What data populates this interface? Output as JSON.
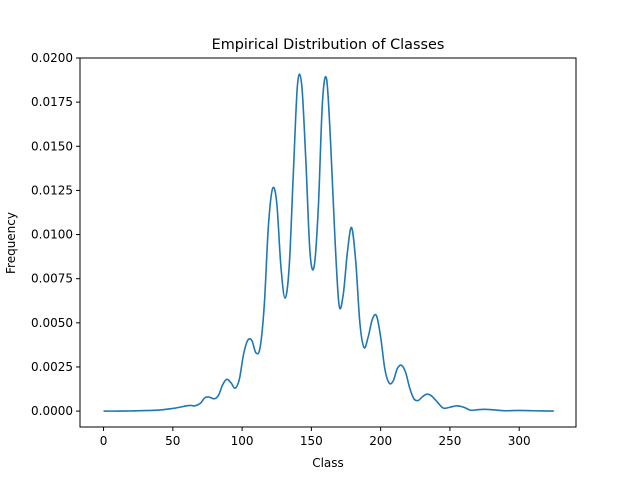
{
  "chart_data": {
    "type": "line",
    "title": "Empirical Distribution of Classes",
    "xlabel": "Class",
    "ylabel": "Frequency",
    "xlim": [
      -17,
      341
    ],
    "ylim": [
      -0.0009,
      0.02
    ],
    "xticks": [
      0,
      50,
      100,
      150,
      200,
      250,
      300
    ],
    "xtick_labels": [
      "0",
      "50",
      "100",
      "150",
      "200",
      "250",
      "300"
    ],
    "yticks": [
      0.0,
      0.0025,
      0.005,
      0.0075,
      0.01,
      0.0125,
      0.015,
      0.0175,
      0.02
    ],
    "ytick_labels": [
      "0.0000",
      "0.0025",
      "0.0050",
      "0.0075",
      "0.0100",
      "0.0125",
      "0.0150",
      "0.0175",
      "0.0200"
    ],
    "grid": false,
    "line_color": "#1f77b4",
    "series": [
      {
        "x": [
          0,
          10,
          20,
          30,
          40,
          45,
          50,
          55,
          60,
          63,
          66,
          70,
          73,
          76,
          80,
          83,
          86,
          89,
          92,
          95,
          98,
          101,
          104,
          107,
          110,
          113,
          116,
          119,
          122,
          125,
          128,
          131,
          134,
          137,
          140,
          143,
          146,
          149,
          152,
          155,
          158,
          161,
          164,
          167,
          170,
          173,
          176,
          179,
          182,
          185,
          188,
          191,
          194,
          197,
          200,
          203,
          206,
          209,
          212,
          215,
          218,
          221,
          224,
          227,
          230,
          233,
          236,
          240,
          245,
          250,
          255,
          260,
          265,
          270,
          275,
          280,
          290,
          300,
          310,
          325
        ],
        "y": [
          0.0,
          0.0,
          1e-05,
          3e-05,
          6e-05,
          0.0001,
          0.00015,
          0.00022,
          0.0003,
          0.00032,
          0.0003,
          0.00045,
          0.00075,
          0.0008,
          0.0007,
          0.0009,
          0.0015,
          0.0018,
          0.0016,
          0.0013,
          0.0018,
          0.0032,
          0.004,
          0.004,
          0.0033,
          0.0036,
          0.006,
          0.0105,
          0.0126,
          0.0118,
          0.0082,
          0.0064,
          0.0082,
          0.0135,
          0.0185,
          0.0185,
          0.0142,
          0.009,
          0.0082,
          0.0115,
          0.0175,
          0.0188,
          0.015,
          0.0098,
          0.006,
          0.0066,
          0.009,
          0.0104,
          0.0085,
          0.005,
          0.0036,
          0.0042,
          0.0052,
          0.0054,
          0.0042,
          0.0024,
          0.0016,
          0.0017,
          0.0024,
          0.0026,
          0.0022,
          0.0013,
          0.0007,
          0.0006,
          0.0008,
          0.00095,
          0.0009,
          0.0006,
          0.00018,
          0.00022,
          0.0003,
          0.00022,
          5e-05,
          8e-05,
          0.0001,
          8e-05,
          2e-05,
          4e-05,
          2e-05,
          0.0
        ]
      }
    ]
  }
}
